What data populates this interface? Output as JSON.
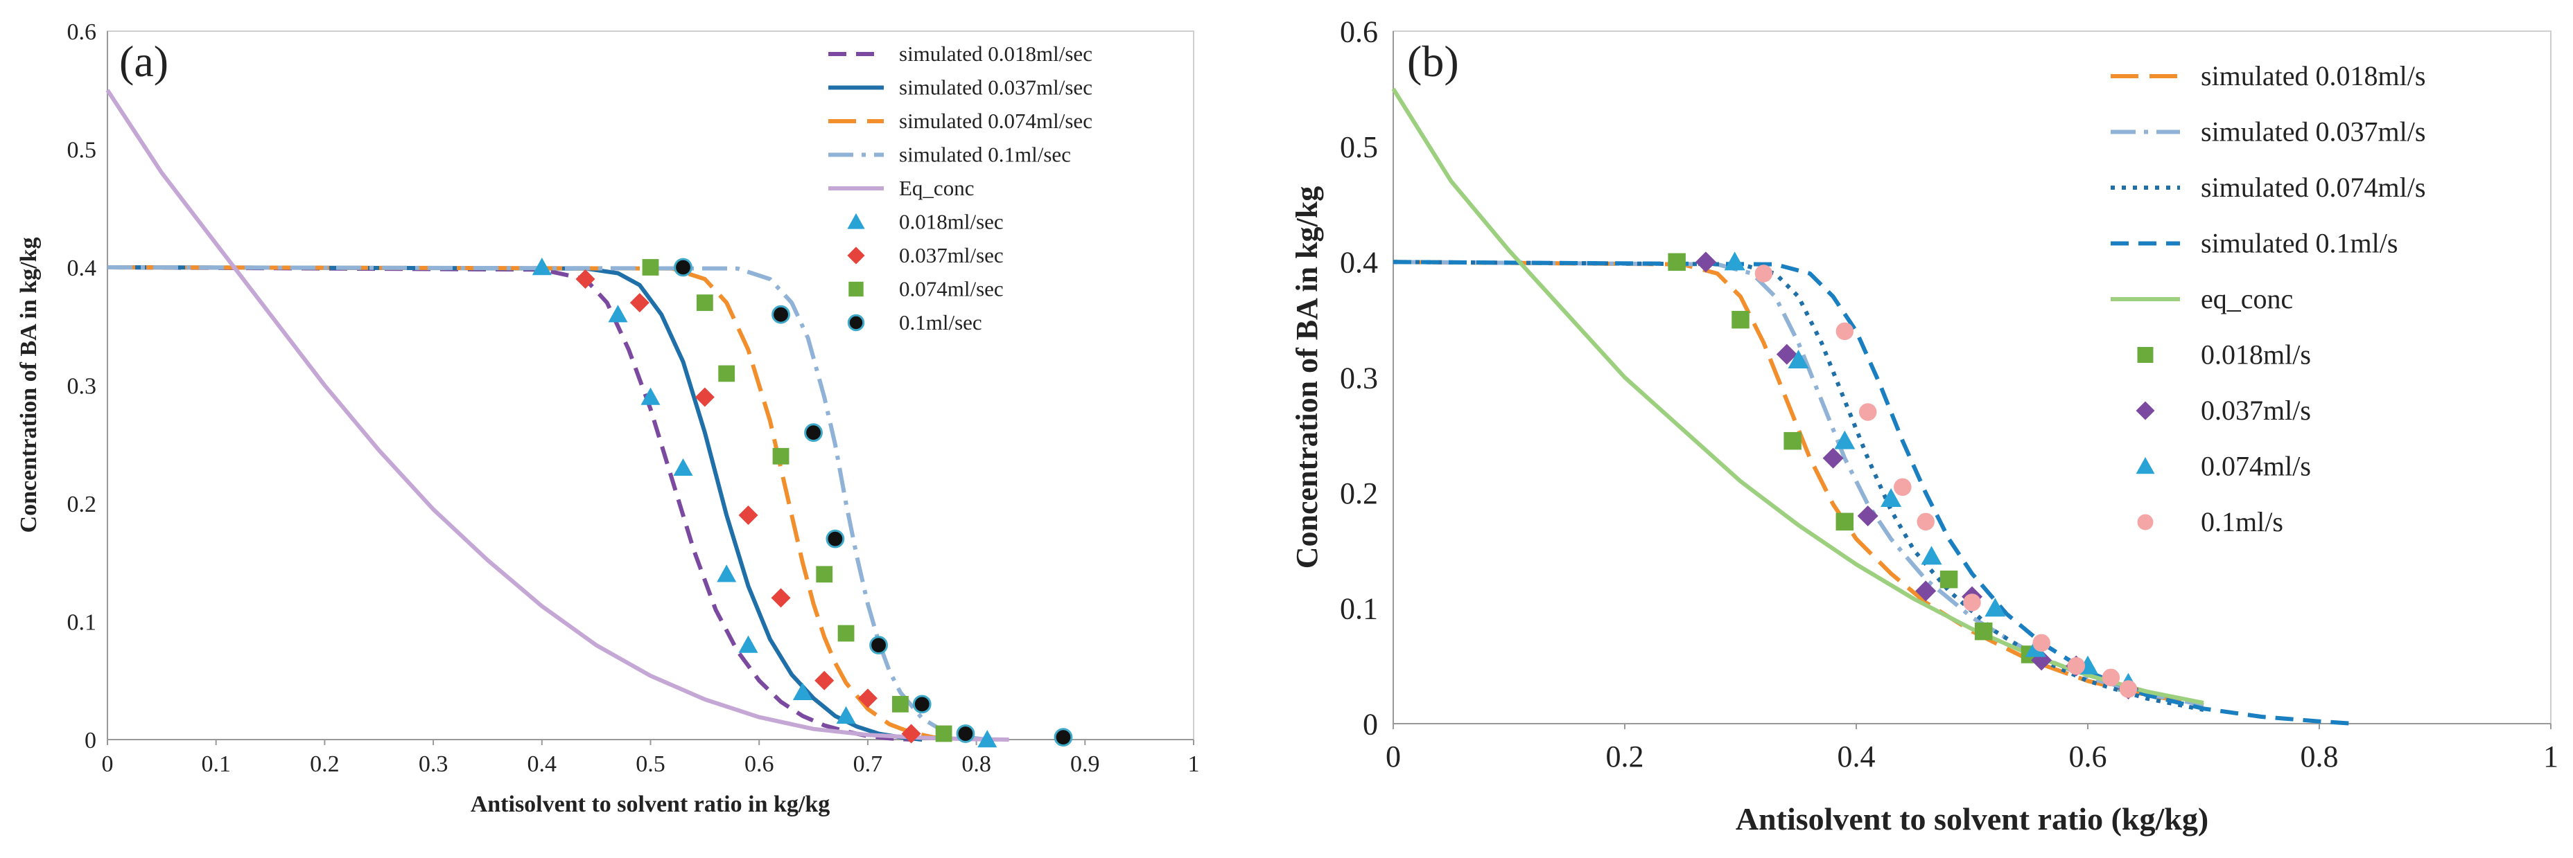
{
  "chart_data": [
    {
      "type": "line",
      "panel_label": "(a)",
      "xlabel": "Antisolvent to solvent ratio in kg/kg",
      "ylabel": "Concentration of BA in kg/kg",
      "xlim": [
        0,
        1
      ],
      "ylim": [
        0,
        0.6
      ],
      "x_ticks": [
        0,
        0.1,
        0.2,
        0.3,
        0.4,
        0.5,
        0.6,
        0.7,
        0.8,
        0.9,
        1
      ],
      "x_tick_labels": [
        "0",
        "0.1",
        "0.2",
        "0.3",
        "0.4",
        "0.5",
        "0.6",
        "0.7",
        "0.8",
        "0.9",
        "1"
      ],
      "y_ticks": [
        0,
        0.1,
        0.2,
        0.3,
        0.4,
        0.5,
        0.6
      ],
      "y_tick_labels": [
        "0",
        "0.1",
        "0.2",
        "0.3",
        "0.4",
        "0.5",
        "0.6"
      ],
      "grid": false,
      "legend_position": "top-right",
      "series": [
        {
          "name": "simulated 0.018ml/sec",
          "kind": "line",
          "style": "dash",
          "color": "#7b4aa0",
          "x": [
            0,
            0.4,
            0.44,
            0.46,
            0.48,
            0.5,
            0.52,
            0.54,
            0.56,
            0.58,
            0.6,
            0.62,
            0.64,
            0.66,
            0.68,
            0.7,
            0.72,
            0.74
          ],
          "y": [
            0.4,
            0.398,
            0.39,
            0.37,
            0.33,
            0.28,
            0.22,
            0.16,
            0.11,
            0.075,
            0.05,
            0.032,
            0.02,
            0.012,
            0.007,
            0.003,
            0.001,
            0
          ]
        },
        {
          "name": "simulated 0.037ml/sec",
          "kind": "line",
          "style": "solid",
          "color": "#1f6fa8",
          "x": [
            0,
            0.44,
            0.47,
            0.49,
            0.51,
            0.53,
            0.55,
            0.57,
            0.59,
            0.61,
            0.63,
            0.65,
            0.67,
            0.69,
            0.71,
            0.73,
            0.75
          ],
          "y": [
            0.4,
            0.399,
            0.395,
            0.385,
            0.36,
            0.32,
            0.26,
            0.19,
            0.13,
            0.085,
            0.055,
            0.035,
            0.02,
            0.011,
            0.005,
            0.002,
            0
          ]
        },
        {
          "name": "simulated 0.074ml/sec",
          "kind": "line",
          "style": "longdash",
          "color": "#f28e2b",
          "x": [
            0,
            0.52,
            0.55,
            0.57,
            0.59,
            0.61,
            0.62,
            0.63,
            0.64,
            0.65,
            0.66,
            0.67,
            0.68,
            0.7,
            0.72,
            0.74,
            0.76,
            0.78
          ],
          "y": [
            0.4,
            0.399,
            0.39,
            0.37,
            0.33,
            0.27,
            0.23,
            0.19,
            0.15,
            0.115,
            0.087,
            0.065,
            0.048,
            0.026,
            0.013,
            0.006,
            0.002,
            0
          ]
        },
        {
          "name": "simulated 0.1ml/sec",
          "kind": "line",
          "style": "dashdot",
          "color": "#8fb2d6",
          "x": [
            0,
            0.58,
            0.61,
            0.63,
            0.645,
            0.66,
            0.67,
            0.68,
            0.69,
            0.7,
            0.71,
            0.72,
            0.73,
            0.75,
            0.77,
            0.79,
            0.81
          ],
          "y": [
            0.4,
            0.399,
            0.39,
            0.37,
            0.34,
            0.29,
            0.25,
            0.2,
            0.155,
            0.115,
            0.083,
            0.058,
            0.04,
            0.018,
            0.007,
            0.002,
            0
          ]
        },
        {
          "name": "Eq_conc",
          "kind": "line",
          "style": "solid",
          "color": "#c5a7d6",
          "x": [
            0,
            0.05,
            0.1,
            0.15,
            0.2,
            0.25,
            0.3,
            0.35,
            0.4,
            0.45,
            0.5,
            0.55,
            0.6,
            0.65,
            0.7,
            0.75,
            0.8,
            0.83
          ],
          "y": [
            0.55,
            0.48,
            0.42,
            0.36,
            0.3,
            0.245,
            0.195,
            0.152,
            0.113,
            0.08,
            0.054,
            0.034,
            0.019,
            0.009,
            0.004,
            0.0015,
            0.0003,
            0
          ]
        },
        {
          "name": "0.018ml/sec",
          "kind": "scatter",
          "marker": "triangle",
          "color": "#29a3d6",
          "x": [
            0.4,
            0.47,
            0.5,
            0.53,
            0.57,
            0.59,
            0.64,
            0.68,
            0.81
          ],
          "y": [
            0.4,
            0.36,
            0.29,
            0.23,
            0.14,
            0.08,
            0.04,
            0.02,
            0.0
          ]
        },
        {
          "name": "0.037ml/sec",
          "kind": "scatter",
          "marker": "diamond",
          "color": "#e5433b",
          "x": [
            0.44,
            0.49,
            0.55,
            0.59,
            0.62,
            0.66,
            0.7,
            0.74
          ],
          "y": [
            0.39,
            0.37,
            0.29,
            0.19,
            0.12,
            0.05,
            0.035,
            0.005
          ]
        },
        {
          "name": "0.074ml/sec",
          "kind": "scatter",
          "marker": "square",
          "color": "#6aab3c",
          "x": [
            0.5,
            0.55,
            0.57,
            0.62,
            0.66,
            0.68,
            0.73,
            0.77
          ],
          "y": [
            0.4,
            0.37,
            0.31,
            0.24,
            0.14,
            0.09,
            0.03,
            0.005
          ]
        },
        {
          "name": "0.1ml/sec",
          "kind": "scatter",
          "marker": "circle",
          "color": "#111111",
          "x": [
            0.53,
            0.62,
            0.65,
            0.67,
            0.71,
            0.75,
            0.79,
            0.88
          ],
          "y": [
            0.4,
            0.36,
            0.26,
            0.17,
            0.08,
            0.03,
            0.005,
            0.002
          ]
        }
      ]
    },
    {
      "type": "line",
      "panel_label": "(b)",
      "xlabel": "Antisolvent to solvent ratio (kg/kg)",
      "ylabel": "Concentration of BA in kg/kg",
      "xlim": [
        0,
        1
      ],
      "ylim": [
        0,
        0.6
      ],
      "x_ticks": [
        0,
        0.2,
        0.4,
        0.6,
        0.8,
        1
      ],
      "x_tick_labels": [
        "0",
        "0.2",
        "0.4",
        "0.6",
        "0.8",
        "1"
      ],
      "y_ticks": [
        0,
        0.1,
        0.2,
        0.3,
        0.4,
        0.5,
        0.6
      ],
      "y_tick_labels": [
        "0",
        "0.1",
        "0.2",
        "0.3",
        "0.4",
        "0.5",
        "0.6"
      ],
      "grid": false,
      "legend_position": "top-right",
      "series": [
        {
          "name": "simulated 0.018ml/s",
          "kind": "line",
          "style": "longdash",
          "color": "#f28e2b",
          "x": [
            0,
            0.25,
            0.28,
            0.3,
            0.32,
            0.34,
            0.36,
            0.38,
            0.4,
            0.43,
            0.46,
            0.5,
            0.55,
            0.6,
            0.65,
            0.7
          ],
          "y": [
            0.4,
            0.398,
            0.39,
            0.37,
            0.33,
            0.28,
            0.23,
            0.19,
            0.16,
            0.13,
            0.105,
            0.08,
            0.055,
            0.037,
            0.025,
            0.016
          ]
        },
        {
          "name": "simulated 0.037ml/s",
          "kind": "line",
          "style": "dashdot",
          "color": "#8fb2d6",
          "x": [
            0,
            0.28,
            0.31,
            0.33,
            0.35,
            0.37,
            0.39,
            0.41,
            0.43,
            0.46,
            0.5,
            0.55,
            0.6,
            0.65,
            0.7
          ],
          "y": [
            0.4,
            0.398,
            0.39,
            0.37,
            0.33,
            0.28,
            0.23,
            0.19,
            0.16,
            0.125,
            0.092,
            0.062,
            0.04,
            0.026,
            0.016
          ]
        },
        {
          "name": "simulated 0.074ml/s",
          "kind": "line",
          "style": "dot",
          "color": "#1f6fa8",
          "x": [
            0,
            0.3,
            0.33,
            0.35,
            0.37,
            0.39,
            0.41,
            0.43,
            0.45,
            0.48,
            0.52,
            0.56,
            0.6,
            0.65,
            0.7
          ],
          "y": [
            0.4,
            0.398,
            0.39,
            0.37,
            0.33,
            0.28,
            0.23,
            0.185,
            0.15,
            0.115,
            0.08,
            0.055,
            0.037,
            0.022,
            0.012
          ]
        },
        {
          "name": "simulated 0.1ml/s",
          "kind": "line",
          "style": "dash",
          "color": "#1a7fc1",
          "x": [
            0,
            0.33,
            0.36,
            0.38,
            0.4,
            0.42,
            0.44,
            0.46,
            0.48,
            0.5,
            0.53,
            0.56,
            0.6,
            0.65,
            0.7,
            0.75,
            0.8,
            0.83
          ],
          "y": [
            0.4,
            0.398,
            0.39,
            0.37,
            0.34,
            0.295,
            0.245,
            0.2,
            0.16,
            0.13,
            0.095,
            0.07,
            0.045,
            0.025,
            0.013,
            0.006,
            0.002,
            0
          ]
        },
        {
          "name": "eq_conc",
          "kind": "line",
          "style": "solid",
          "color": "#9ccf7e",
          "x": [
            0,
            0.05,
            0.1,
            0.15,
            0.2,
            0.25,
            0.3,
            0.35,
            0.4,
            0.45,
            0.5,
            0.55,
            0.6,
            0.65,
            0.7
          ],
          "y": [
            0.55,
            0.47,
            0.41,
            0.355,
            0.3,
            0.255,
            0.21,
            0.172,
            0.138,
            0.108,
            0.082,
            0.06,
            0.042,
            0.028,
            0.018
          ]
        },
        {
          "name": "0.018ml/s",
          "kind": "scatter",
          "marker": "square",
          "color": "#6aab3c",
          "x": [
            0.245,
            0.3,
            0.345,
            0.39,
            0.48,
            0.51,
            0.55
          ],
          "y": [
            0.4,
            0.35,
            0.245,
            0.175,
            0.125,
            0.08,
            0.06
          ]
        },
        {
          "name": "0.037ml/s",
          "kind": "scatter",
          "marker": "diamond",
          "color": "#7b4aa0",
          "x": [
            0.27,
            0.34,
            0.38,
            0.41,
            0.46,
            0.5,
            0.56,
            0.59,
            0.635
          ],
          "y": [
            0.4,
            0.32,
            0.23,
            0.18,
            0.115,
            0.11,
            0.055,
            0.05,
            0.03
          ]
        },
        {
          "name": "0.074ml/s",
          "kind": "scatter",
          "marker": "triangle",
          "color": "#29a3d6",
          "x": [
            0.295,
            0.35,
            0.39,
            0.43,
            0.465,
            0.52,
            0.555,
            0.6,
            0.635
          ],
          "y": [
            0.4,
            0.315,
            0.245,
            0.195,
            0.145,
            0.1,
            0.065,
            0.05,
            0.035
          ]
        },
        {
          "name": "0.1ml/s",
          "kind": "scatter",
          "marker": "circle",
          "color": "#f4a6a6",
          "x": [
            0.32,
            0.39,
            0.41,
            0.44,
            0.46,
            0.5,
            0.56,
            0.59,
            0.62,
            0.635
          ],
          "y": [
            0.39,
            0.34,
            0.27,
            0.205,
            0.175,
            0.105,
            0.07,
            0.05,
            0.04,
            0.03
          ]
        }
      ]
    }
  ]
}
